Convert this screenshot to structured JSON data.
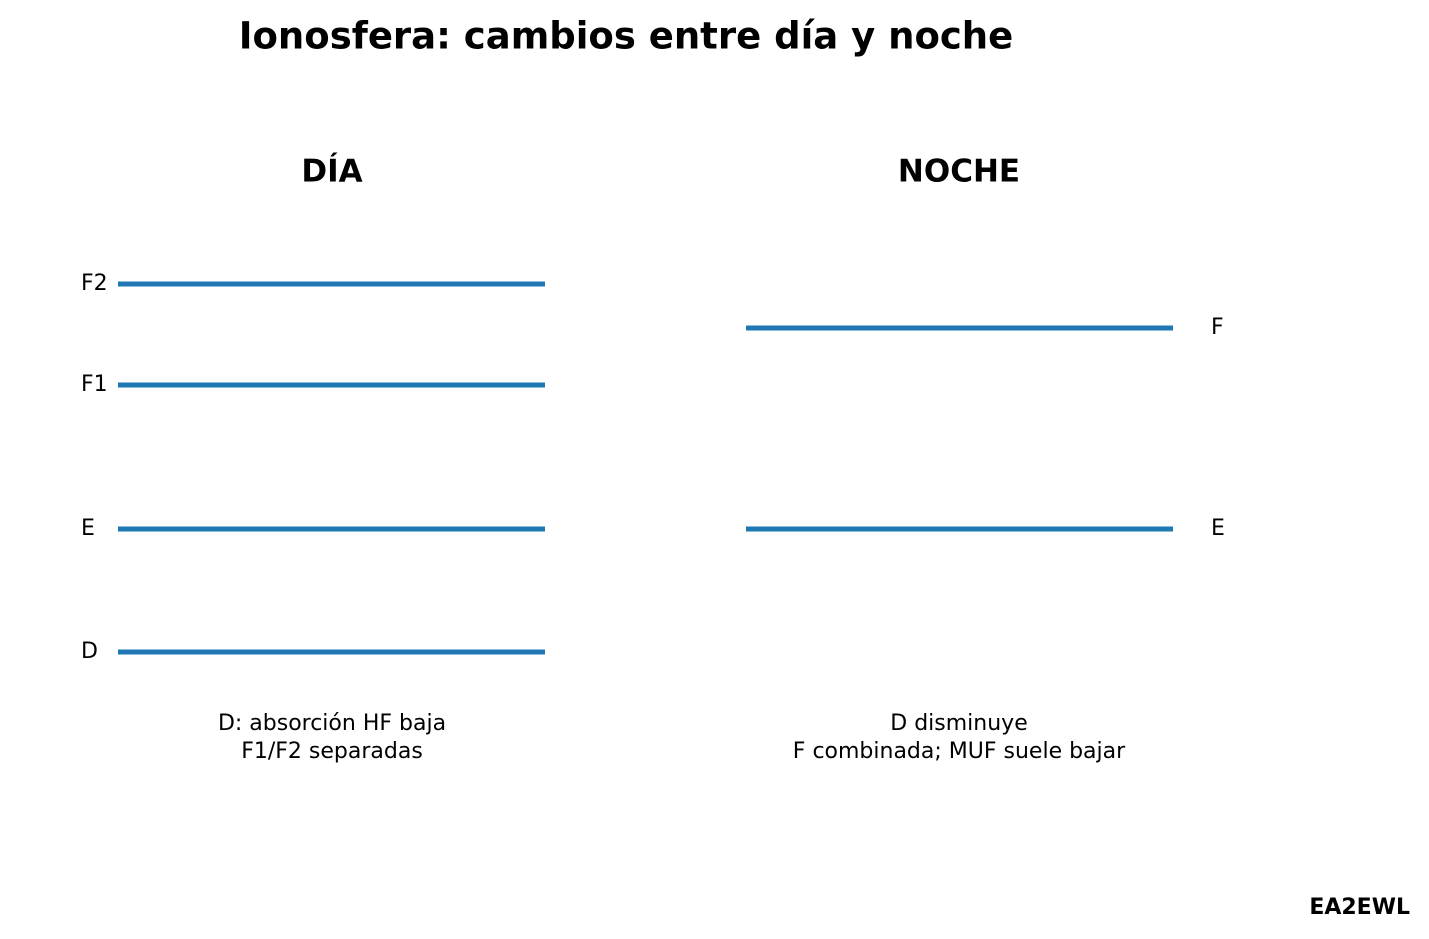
{
  "title": "Ionosfera: cambios entre día y noche",
  "panels": [
    {
      "heading": "DÍA",
      "layers": [
        {
          "label": "F2"
        },
        {
          "label": "F1"
        },
        {
          "label": "E"
        },
        {
          "label": "D"
        }
      ],
      "note": [
        "D: absorción HF baja",
        "F1/F2 separadas"
      ]
    },
    {
      "heading": "NOCHE",
      "layers": [
        {
          "label": "F"
        },
        {
          "label": "E"
        }
      ],
      "note": [
        "D disminuye",
        "F combinada; MUF suele bajar"
      ]
    }
  ],
  "credit": "EA2EWL"
}
